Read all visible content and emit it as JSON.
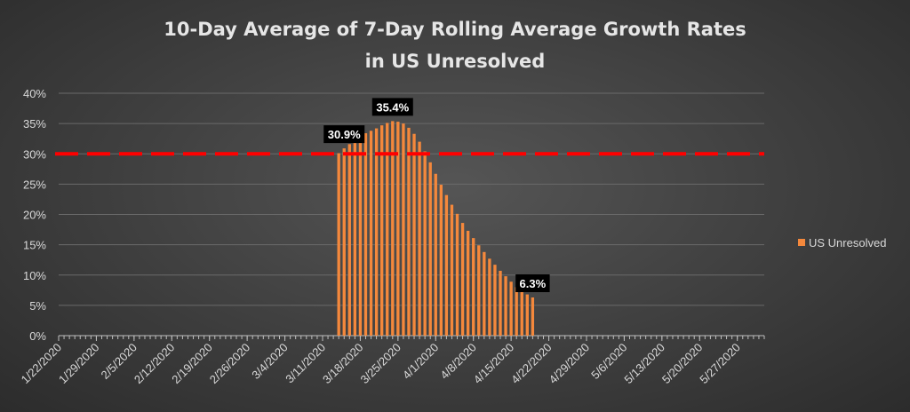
{
  "chart_data": {
    "type": "bar",
    "title_lines": [
      "10-Day Average of 7-Day Rolling Average Growth Rates",
      "in US Unresolved"
    ],
    "x_tick_labels": [
      "1/22/2020",
      "1/29/2020",
      "2/5/2020",
      "2/12/2020",
      "2/19/2020",
      "2/26/2020",
      "3/4/2020",
      "3/11/2020",
      "3/18/2020",
      "3/25/2020",
      "4/1/2020",
      "4/8/2020",
      "4/15/2020",
      "4/22/2020",
      "4/29/2020",
      "5/6/2020",
      "5/13/2020",
      "5/20/2020",
      "5/27/2020"
    ],
    "y_tick_labels": [
      "0%",
      "5%",
      "10%",
      "15%",
      "20%",
      "25%",
      "30%",
      "35%",
      "40%"
    ],
    "ylim": [
      0,
      40
    ],
    "y_step": 5,
    "x_start": "2020-01-22",
    "x_end": "2020-06-01",
    "grid": true,
    "legend_position": "right",
    "threshold": {
      "value": 30,
      "color": "#ff0000",
      "style": "dashed"
    },
    "series": [
      {
        "name": "US Unresolved",
        "color": "#f4883c",
        "x": [
          "2020-03-14",
          "2020-03-15",
          "2020-03-16",
          "2020-03-17",
          "2020-03-18",
          "2020-03-19",
          "2020-03-20",
          "2020-03-21",
          "2020-03-22",
          "2020-03-23",
          "2020-03-24",
          "2020-03-25",
          "2020-03-26",
          "2020-03-27",
          "2020-03-28",
          "2020-03-29",
          "2020-03-30",
          "2020-03-31",
          "2020-04-01",
          "2020-04-02",
          "2020-04-03",
          "2020-04-04",
          "2020-04-05",
          "2020-04-06",
          "2020-04-07",
          "2020-04-08",
          "2020-04-09",
          "2020-04-10",
          "2020-04-11",
          "2020-04-12",
          "2020-04-13",
          "2020-04-14",
          "2020-04-15",
          "2020-04-16",
          "2020-04-17",
          "2020-04-18",
          "2020-04-19"
        ],
        "values": [
          30.1,
          30.9,
          31.6,
          32.3,
          32.9,
          33.4,
          33.8,
          34.2,
          34.7,
          35.1,
          35.4,
          35.3,
          35.0,
          34.3,
          33.3,
          32.0,
          30.4,
          28.6,
          26.7,
          24.9,
          23.2,
          21.6,
          20.1,
          18.6,
          17.3,
          16.1,
          14.9,
          13.8,
          12.7,
          11.7,
          10.7,
          9.8,
          8.9,
          8.0,
          7.3,
          6.8,
          6.3
        ]
      }
    ],
    "data_labels": [
      {
        "x": "2020-03-15",
        "text": "30.9%"
      },
      {
        "x": "2020-03-24",
        "text": "35.4%"
      },
      {
        "x": "2020-04-19",
        "text": "6.3%"
      }
    ]
  }
}
